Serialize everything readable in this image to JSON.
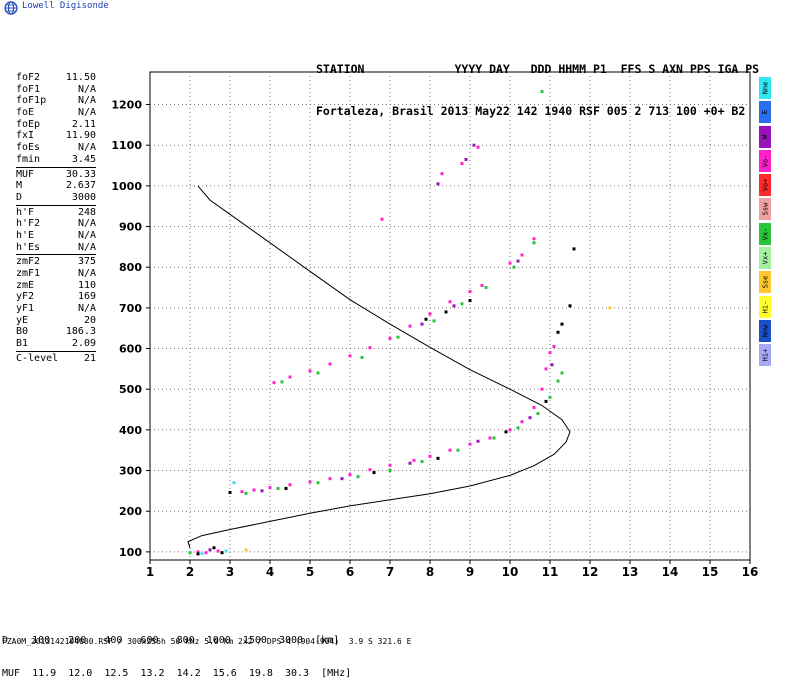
{
  "brand": {
    "name": "Lowell Digisonde"
  },
  "header": {
    "line1": "STATION             YYYY DAY   DDD HHMM P1  FFS S AXN PPS IGA PS",
    "line2": "Fortaleza, Brasil 2013 May22 142 1940 RSF 005 2 713 100 +0+ B2"
  },
  "params": {
    "group1": [
      {
        "label": "foF2",
        "value": "11.50"
      },
      {
        "label": "foF1",
        "value": "N/A"
      },
      {
        "label": "foF1p",
        "value": "N/A"
      },
      {
        "label": "foE",
        "value": "N/A"
      },
      {
        "label": "foEp",
        "value": "2.11"
      },
      {
        "label": "fxI",
        "value": "11.90"
      },
      {
        "label": "foEs",
        "value": "N/A"
      },
      {
        "label": "fmin",
        "value": "3.45"
      }
    ],
    "group2": [
      {
        "label": "MUF",
        "value": "30.33"
      },
      {
        "label": "M",
        "value": "2.637"
      },
      {
        "label": "D",
        "value": "3000"
      }
    ],
    "group3": [
      {
        "label": "h'F",
        "value": "248"
      },
      {
        "label": "h'F2",
        "value": "N/A"
      },
      {
        "label": "h'E",
        "value": "N/A"
      },
      {
        "label": "h'Es",
        "value": "N/A"
      }
    ],
    "group4": [
      {
        "label": "zmF2",
        "value": "375"
      },
      {
        "label": "zmF1",
        "value": "N/A"
      },
      {
        "label": "zmE",
        "value": "110"
      },
      {
        "label": "yF2",
        "value": "169"
      },
      {
        "label": "yF1",
        "value": "N/A"
      },
      {
        "label": "yE",
        "value": "20"
      },
      {
        "label": "B0",
        "value": "186.3"
      },
      {
        "label": "B1",
        "value": "2.09"
      }
    ],
    "group5": [
      {
        "label": "C-level",
        "value": "21"
      }
    ]
  },
  "legend": [
    {
      "label": "Nne",
      "color": "#33e6f2"
    },
    {
      "label": "E",
      "color": "#2a6ef0"
    },
    {
      "label": "W",
      "color": "#9b13b8"
    },
    {
      "label": "Vo-",
      "color": "#ff22c8"
    },
    {
      "label": "Vo+",
      "color": "#ff2a2a"
    },
    {
      "label": "Ssw",
      "color": "#f0a0a0"
    },
    {
      "label": "Vx-",
      "color": "#28c43a"
    },
    {
      "label": "Vx+",
      "color": "#a6f0a0"
    },
    {
      "label": "Sse",
      "color": "#ffc830"
    },
    {
      "label": "Hi-",
      "color": "#ffff30"
    },
    {
      "label": "Nnw",
      "color": "#1a50c8"
    },
    {
      "label": "Hi+",
      "color": "#a8a8f2"
    }
  ],
  "muf_table": {
    "row1": "D    100   200   400   600   800  1000  1500  3000  [km]",
    "row2": "MUF  11.9  12.0  12.5  13.2  14.2  15.6  19.8  30.3  [MHz]"
  },
  "footer": "FZA0M_2013142194000.RSF / 300x256h 50 kHz 5.0 km 2x2 / DPS-4 (904-904)  3.9 S 321.6 E",
  "chart_data": {
    "type": "scatter",
    "xlim": [
      1,
      16
    ],
    "ylim": [
      80,
      1280
    ],
    "x_ticks": [
      "1",
      "2",
      "3",
      "4",
      "5",
      "6",
      "7",
      "8",
      "9",
      "10",
      "11",
      "12",
      "13",
      "14",
      "15",
      "16"
    ],
    "y_ticks": [
      "100",
      "200",
      "300",
      "400",
      "500",
      "600",
      "700",
      "800",
      "900",
      "1000",
      "1100",
      "1200"
    ],
    "x_tick_values": [
      1,
      2,
      3,
      4,
      5,
      6,
      7,
      8,
      9,
      10,
      11,
      12,
      13,
      14,
      15,
      16
    ],
    "y_tick_values": [
      100,
      200,
      300,
      400,
      500,
      600,
      700,
      800,
      900,
      1000,
      1100,
      1200
    ],
    "grid": true,
    "series": [
      {
        "color": "#ff22c8",
        "points": [
          [
            2.2,
            100
          ],
          [
            2.4,
            98
          ],
          [
            2.7,
            102
          ],
          [
            3.3,
            248
          ],
          [
            3.6,
            252
          ],
          [
            4.0,
            258
          ],
          [
            4.5,
            265
          ],
          [
            5.0,
            272
          ],
          [
            5.5,
            280
          ],
          [
            6.0,
            290
          ],
          [
            6.5,
            302
          ],
          [
            7.0,
            313
          ],
          [
            7.6,
            325
          ],
          [
            8.0,
            335
          ],
          [
            8.5,
            350
          ],
          [
            9.0,
            365
          ],
          [
            9.5,
            380
          ],
          [
            10.0,
            400
          ],
          [
            10.3,
            420
          ],
          [
            10.6,
            455
          ],
          [
            10.8,
            500
          ],
          [
            10.9,
            550
          ],
          [
            11.0,
            590
          ],
          [
            11.1,
            605
          ],
          [
            4.1,
            516
          ],
          [
            4.5,
            530
          ],
          [
            5.0,
            545
          ],
          [
            5.5,
            562
          ],
          [
            6.0,
            582
          ],
          [
            6.5,
            602
          ],
          [
            7.0,
            625
          ],
          [
            7.5,
            655
          ],
          [
            8.0,
            685
          ],
          [
            8.5,
            715
          ],
          [
            9.0,
            740
          ],
          [
            9.3,
            755
          ],
          [
            10.0,
            810
          ],
          [
            10.3,
            830
          ],
          [
            10.6,
            870
          ],
          [
            6.8,
            918
          ],
          [
            8.3,
            1030
          ],
          [
            8.8,
            1055
          ],
          [
            9.2,
            1095
          ]
        ]
      },
      {
        "color": "#28c43a",
        "points": [
          [
            2.0,
            98
          ],
          [
            3.4,
            244
          ],
          [
            4.2,
            256
          ],
          [
            5.2,
            270
          ],
          [
            6.2,
            285
          ],
          [
            7.0,
            300
          ],
          [
            7.8,
            322
          ],
          [
            8.7,
            350
          ],
          [
            9.6,
            380
          ],
          [
            10.2,
            405
          ],
          [
            10.7,
            440
          ],
          [
            11.0,
            480
          ],
          [
            11.2,
            520
          ],
          [
            11.3,
            540
          ],
          [
            4.3,
            518
          ],
          [
            5.2,
            540
          ],
          [
            6.3,
            578
          ],
          [
            7.2,
            628
          ],
          [
            8.1,
            668
          ],
          [
            8.8,
            710
          ],
          [
            9.4,
            750
          ],
          [
            10.1,
            800
          ],
          [
            10.6,
            860
          ],
          [
            10.8,
            1232
          ]
        ]
      },
      {
        "color": "#9b13b8",
        "points": [
          [
            2.5,
            105
          ],
          [
            3.8,
            250
          ],
          [
            5.8,
            280
          ],
          [
            7.5,
            318
          ],
          [
            9.2,
            372
          ],
          [
            10.5,
            430
          ],
          [
            11.05,
            560
          ],
          [
            7.8,
            660
          ],
          [
            8.6,
            705
          ],
          [
            10.2,
            815
          ],
          [
            8.2,
            1005
          ],
          [
            8.9,
            1065
          ],
          [
            9.1,
            1100
          ]
        ]
      },
      {
        "color": "#000000",
        "points": [
          [
            2.6,
            110
          ],
          [
            2.8,
            98
          ],
          [
            3.0,
            246
          ],
          [
            4.4,
            256
          ],
          [
            6.6,
            295
          ],
          [
            8.2,
            330
          ],
          [
            9.9,
            395
          ],
          [
            10.9,
            470
          ],
          [
            11.2,
            640
          ],
          [
            11.3,
            660
          ],
          [
            11.5,
            705
          ],
          [
            11.6,
            845
          ],
          [
            7.9,
            672
          ],
          [
            8.4,
            690
          ],
          [
            9.0,
            718
          ],
          [
            2.2,
            95
          ]
        ]
      },
      {
        "color": "#33e6f2",
        "points": [
          [
            2.3,
            96
          ],
          [
            2.9,
            102
          ],
          [
            3.1,
            270
          ]
        ]
      },
      {
        "color": "#ffc830",
        "points": [
          [
            3.4,
            105
          ],
          [
            12.5,
            700
          ]
        ]
      }
    ],
    "profile_curve": {
      "color": "#000000",
      "points": [
        [
          2.0,
          110
        ],
        [
          1.95,
          125
        ],
        [
          2.3,
          140
        ],
        [
          3.0,
          155
        ],
        [
          4.0,
          175
        ],
        [
          5.0,
          195
        ],
        [
          6.0,
          213
        ],
        [
          7.0,
          228
        ],
        [
          8.0,
          243
        ],
        [
          9.0,
          262
        ],
        [
          10.0,
          288
        ],
        [
          10.6,
          312
        ],
        [
          11.1,
          340
        ],
        [
          11.4,
          370
        ],
        [
          11.5,
          395
        ],
        [
          11.3,
          425
        ],
        [
          10.8,
          460
        ],
        [
          10.0,
          500
        ],
        [
          9.0,
          548
        ],
        [
          8.0,
          603
        ],
        [
          7.0,
          660
        ],
        [
          6.0,
          720
        ],
        [
          5.0,
          790
        ],
        [
          4.0,
          860
        ],
        [
          3.0,
          930
        ],
        [
          2.5,
          965
        ],
        [
          2.2,
          1000
        ]
      ]
    }
  }
}
